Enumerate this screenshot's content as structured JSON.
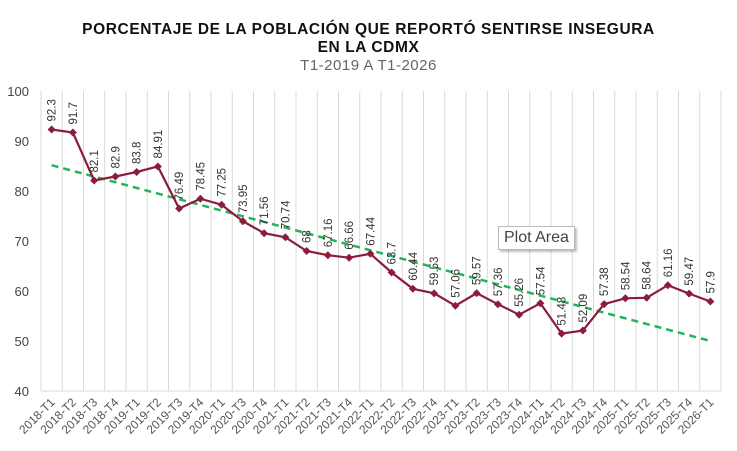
{
  "chart_data": {
    "type": "line",
    "title": [
      "PORCENTAJE DE LA POBLACIÓN QUE REPORTÓ SENTIRSE INSEGURA",
      "EN LA CDMX"
    ],
    "subtitle": "T1-2019 A T1-2026",
    "xlabel": "",
    "ylabel": "",
    "ylim": [
      40,
      100
    ],
    "yticks": [
      40,
      50,
      60,
      70,
      80,
      90,
      100
    ],
    "grid": {
      "vertical": true,
      "horizontal": false
    },
    "categories": [
      "2018-T1",
      "2018-T2",
      "2018-T3",
      "2018-T4",
      "2019-T1",
      "2019-T2",
      "2019-T3",
      "2019-T4",
      "2020-T1",
      "2020-T3",
      "2020-T4",
      "2021-T1",
      "2021-T2",
      "2021-T3",
      "2021-T4",
      "2022-T1",
      "2022-T2",
      "2022-T3",
      "2022-T4",
      "2023-T1",
      "2023-T2",
      "2023-T3",
      "2023-T4",
      "2024-T1",
      "2024-T2",
      "2024-T3",
      "2024-T4",
      "2025-T1",
      "2025-T2",
      "2025-T3",
      "2025-T4",
      "2026-T1"
    ],
    "series": [
      {
        "values": [
          92.3,
          91.7,
          82.1,
          82.9,
          83.8,
          84.91,
          76.49,
          78.45,
          77.25,
          73.95,
          71.56,
          70.74,
          68,
          67.16,
          66.66,
          67.44,
          63.7,
          60.44,
          59.53,
          57.06,
          59.57,
          57.36,
          55.26,
          57.54,
          51.48,
          52.09,
          57.38,
          58.54,
          58.64,
          61.16,
          59.47,
          57.9
        ],
        "color": "#8b1c3c",
        "marker": "diamond",
        "data_labels": true
      }
    ],
    "trendline": {
      "type": "linear",
      "style": "dashed",
      "color": "#22b45a"
    },
    "tooltip": "Plot Area"
  }
}
